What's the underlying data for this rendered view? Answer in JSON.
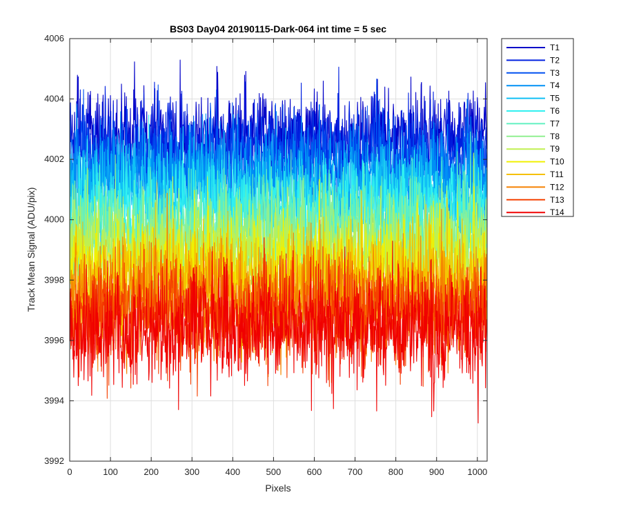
{
  "chart_data": {
    "type": "line",
    "title": "BS03 Day04 20190115-Dark-064 int time = 5 sec",
    "xlabel": "Pixels",
    "ylabel": "Track Mean Signal (ADU/pix)",
    "xlim": [
      0,
      1024
    ],
    "ylim": [
      3992,
      4006
    ],
    "xticks": [
      0,
      100,
      200,
      300,
      400,
      500,
      600,
      700,
      800,
      900,
      1000
    ],
    "yticks": [
      3992,
      3994,
      3996,
      3998,
      4000,
      4002,
      4004,
      4006
    ],
    "grid": true,
    "legend_position": "outside-right",
    "pixels_per_track": 1024,
    "series": [
      {
        "name": "T1",
        "color": "#0000c8",
        "mean": 4002.8,
        "spread": 0.75
      },
      {
        "name": "T2",
        "color": "#0020e0",
        "mean": 4002.3,
        "spread": 0.8
      },
      {
        "name": "T3",
        "color": "#0050f0",
        "mean": 4001.8,
        "spread": 0.85
      },
      {
        "name": "T4",
        "color": "#0090f5",
        "mean": 4001.3,
        "spread": 0.85
      },
      {
        "name": "T5",
        "color": "#10c0f5",
        "mean": 4000.8,
        "spread": 0.85
      },
      {
        "name": "T6",
        "color": "#30f0f0",
        "mean": 4000.3,
        "spread": 0.85
      },
      {
        "name": "T7",
        "color": "#60f0c0",
        "mean": 3999.8,
        "spread": 0.85
      },
      {
        "name": "T8",
        "color": "#90f090",
        "mean": 3999.3,
        "spread": 0.85
      },
      {
        "name": "T9",
        "color": "#c0f050",
        "mean": 3998.9,
        "spread": 0.85
      },
      {
        "name": "T10",
        "color": "#f0f000",
        "mean": 3998.4,
        "spread": 0.85
      },
      {
        "name": "T11",
        "color": "#f5c000",
        "mean": 3997.9,
        "spread": 0.9
      },
      {
        "name": "T12",
        "color": "#f58000",
        "mean": 3997.4,
        "spread": 0.9
      },
      {
        "name": "T13",
        "color": "#f54000",
        "mean": 3996.9,
        "spread": 0.9
      },
      {
        "name": "T14",
        "color": "#f00000",
        "mean": 3996.4,
        "spread": 0.95
      }
    ]
  }
}
